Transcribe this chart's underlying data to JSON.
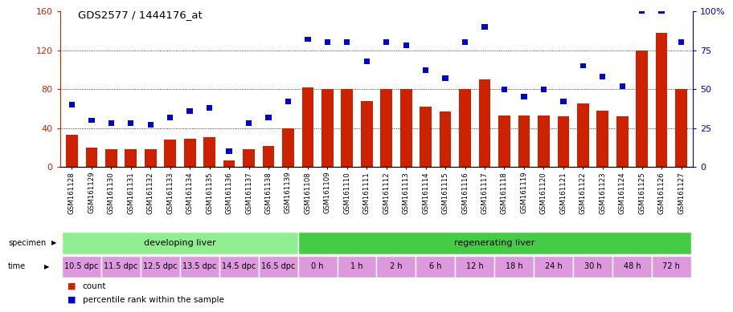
{
  "title": "GDS2577 / 1444176_at",
  "samples": [
    "GSM161128",
    "GSM161129",
    "GSM161130",
    "GSM161131",
    "GSM161132",
    "GSM161133",
    "GSM161134",
    "GSM161135",
    "GSM161136",
    "GSM161137",
    "GSM161138",
    "GSM161139",
    "GSM161108",
    "GSM161109",
    "GSM161110",
    "GSM161111",
    "GSM161112",
    "GSM161113",
    "GSM161114",
    "GSM161115",
    "GSM161116",
    "GSM161117",
    "GSM161118",
    "GSM161119",
    "GSM161120",
    "GSM161121",
    "GSM161122",
    "GSM161123",
    "GSM161124",
    "GSM161125",
    "GSM161126",
    "GSM161127"
  ],
  "counts": [
    33,
    20,
    18,
    18,
    18,
    28,
    29,
    31,
    7,
    18,
    22,
    40,
    82,
    80,
    80,
    68,
    80,
    80,
    62,
    57,
    80,
    90,
    53,
    53,
    53,
    52,
    65,
    58,
    52,
    120,
    138,
    80
  ],
  "percentiles": [
    40,
    30,
    28,
    28,
    27,
    32,
    36,
    38,
    10,
    28,
    32,
    42,
    82,
    80,
    80,
    68,
    80,
    78,
    62,
    57,
    80,
    90,
    50,
    45,
    50,
    42,
    65,
    58,
    52,
    100,
    100,
    80
  ],
  "specimen_groups": [
    {
      "label": "developing liver",
      "start": 0,
      "end": 12,
      "color": "#90ee90"
    },
    {
      "label": "regenerating liver",
      "start": 12,
      "end": 32,
      "color": "#44cc44"
    }
  ],
  "time_groups": [
    {
      "label": "10.5 dpc",
      "start": 0,
      "end": 2
    },
    {
      "label": "11.5 dpc",
      "start": 2,
      "end": 4
    },
    {
      "label": "12.5 dpc",
      "start": 4,
      "end": 6
    },
    {
      "label": "13.5 dpc",
      "start": 6,
      "end": 8
    },
    {
      "label": "14.5 dpc",
      "start": 8,
      "end": 10
    },
    {
      "label": "16.5 dpc",
      "start": 10,
      "end": 12
    },
    {
      "label": "0 h",
      "start": 12,
      "end": 14
    },
    {
      "label": "1 h",
      "start": 14,
      "end": 16
    },
    {
      "label": "2 h",
      "start": 16,
      "end": 18
    },
    {
      "label": "6 h",
      "start": 18,
      "end": 20
    },
    {
      "label": "12 h",
      "start": 20,
      "end": 22
    },
    {
      "label": "18 h",
      "start": 22,
      "end": 24
    },
    {
      "label": "24 h",
      "start": 24,
      "end": 26
    },
    {
      "label": "30 h",
      "start": 26,
      "end": 28
    },
    {
      "label": "48 h",
      "start": 28,
      "end": 30
    },
    {
      "label": "72 h",
      "start": 30,
      "end": 32
    }
  ],
  "ylim_left": [
    0,
    160
  ],
  "ylim_right": [
    0,
    100
  ],
  "yticks_left": [
    0,
    40,
    80,
    120,
    160
  ],
  "yticks_right": [
    0,
    25,
    50,
    75,
    100
  ],
  "bar_color": "#cc2200",
  "percentile_color": "#0000cc",
  "time_row_color": "#dd99dd",
  "left_axis_color": "#cc2200",
  "right_axis_color": "#0000cc"
}
